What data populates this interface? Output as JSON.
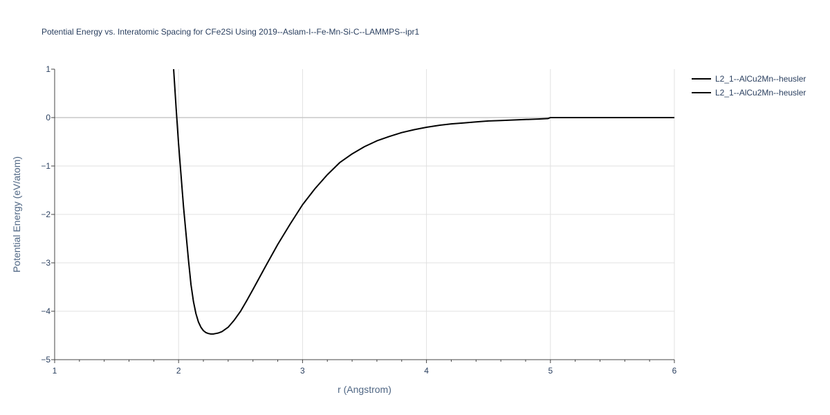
{
  "chart_data": {
    "type": "line",
    "title": "Potential Energy vs. Interatomic Spacing for CFe2Si Using 2019--Aslam-I--Fe-Mn-Si-C--LAMMPS--ipr1",
    "xlabel": "r (Angstrom)",
    "ylabel": "Potential Energy (eV/atom)",
    "xlim": [
      1,
      6
    ],
    "ylim": [
      -5,
      1
    ],
    "x_ticks": [
      "1",
      "2",
      "3",
      "4",
      "5",
      "6"
    ],
    "y_ticks": [
      "1",
      "0",
      "−1",
      "−2",
      "−3",
      "−4",
      "−5"
    ],
    "grid": true,
    "legend_position": "top-right",
    "line_color": "#000000",
    "series": [
      {
        "name": "L2_1--AlCu2Mn--heusler",
        "x": [
          1.96,
          1.98,
          2.0,
          2.02,
          2.04,
          2.06,
          2.08,
          2.1,
          2.12,
          2.14,
          2.16,
          2.18,
          2.2,
          2.22,
          2.24,
          2.26,
          2.28,
          2.3,
          2.32,
          2.35,
          2.4,
          2.45,
          2.5,
          2.55,
          2.6,
          2.7,
          2.8,
          2.9,
          3.0,
          3.1,
          3.2,
          3.3,
          3.4,
          3.5,
          3.6,
          3.7,
          3.8,
          3.9,
          4.0,
          4.1,
          4.2,
          4.3,
          4.4,
          4.5,
          4.6,
          4.7,
          4.8,
          4.9,
          4.98,
          5.0,
          5.5,
          6.0
        ],
        "y": [
          1.0,
          0.2,
          -0.55,
          -1.2,
          -1.85,
          -2.4,
          -2.95,
          -3.45,
          -3.8,
          -4.05,
          -4.22,
          -4.33,
          -4.4,
          -4.44,
          -4.46,
          -4.47,
          -4.47,
          -4.46,
          -4.45,
          -4.42,
          -4.33,
          -4.18,
          -4.0,
          -3.78,
          -3.55,
          -3.08,
          -2.62,
          -2.2,
          -1.8,
          -1.47,
          -1.18,
          -0.93,
          -0.75,
          -0.6,
          -0.48,
          -0.39,
          -0.31,
          -0.25,
          -0.2,
          -0.16,
          -0.13,
          -0.11,
          -0.09,
          -0.07,
          -0.06,
          -0.05,
          -0.04,
          -0.03,
          -0.02,
          0.0,
          0.0,
          0.0
        ]
      },
      {
        "name": "L2_1--AlCu2Mn--heusler",
        "x": [],
        "y": []
      }
    ]
  }
}
